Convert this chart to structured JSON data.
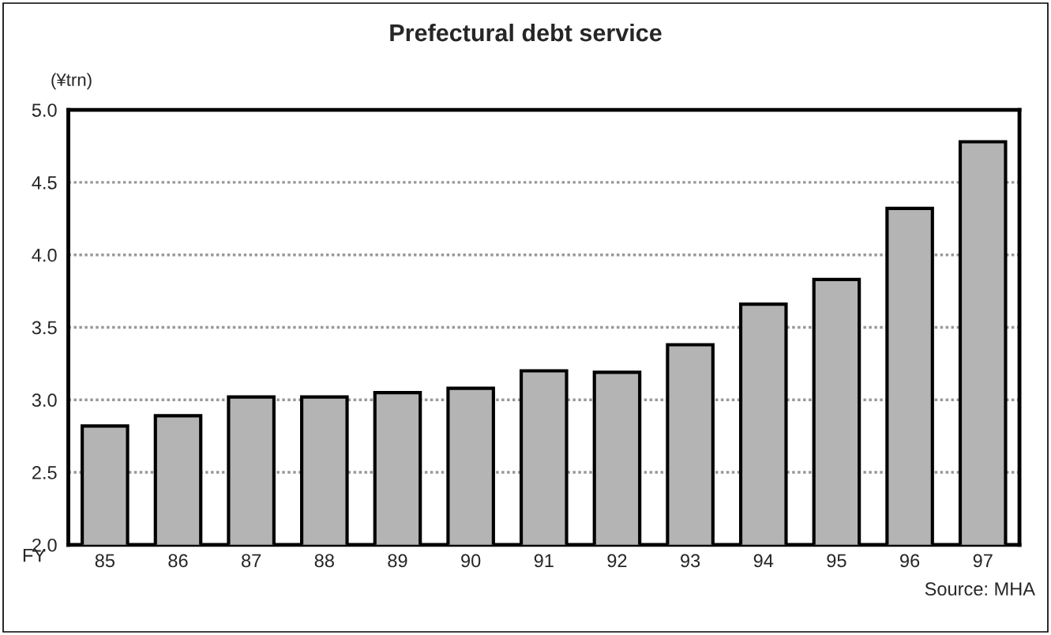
{
  "chart_data": {
    "type": "bar",
    "title": "Prefectural debt service",
    "ylabel": "(¥trn)",
    "xlabel": "FY",
    "categories": [
      "85",
      "86",
      "87",
      "88",
      "89",
      "90",
      "91",
      "92",
      "93",
      "94",
      "95",
      "96",
      "97"
    ],
    "values": [
      2.82,
      2.89,
      3.02,
      3.02,
      3.05,
      3.08,
      3.2,
      3.19,
      3.38,
      3.66,
      3.83,
      4.32,
      4.78
    ],
    "color": "#b4b4b4",
    "ylim": [
      2.0,
      5.0
    ],
    "yticks": [
      {
        "value": 2.0,
        "label": "2.0"
      },
      {
        "value": 2.5,
        "label": "2.5"
      },
      {
        "value": 3.0,
        "label": "3.0"
      },
      {
        "value": 3.5,
        "label": "3.5"
      },
      {
        "value": 4.0,
        "label": "4.0"
      },
      {
        "value": 4.5,
        "label": "4.5"
      },
      {
        "value": 5.0,
        "label": "5.0"
      }
    ],
    "grid": "y",
    "annotations": [
      "Source: MHA"
    ]
  }
}
